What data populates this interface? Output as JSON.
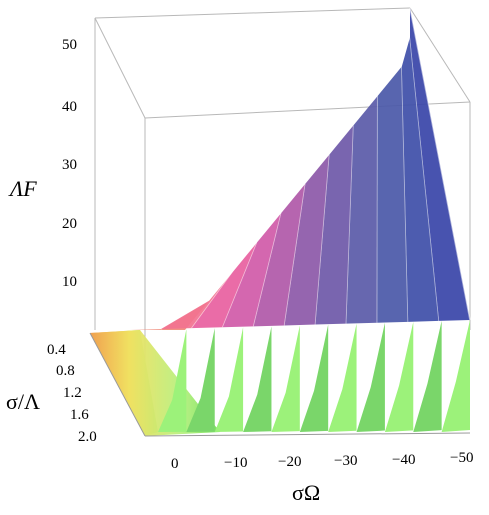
{
  "chart_data": {
    "type": "surface3d",
    "title": "",
    "zlabel": "ΛF",
    "ylabel": "σ/Λ",
    "xlabel": "σΩ",
    "x_ticks": [
      "0",
      "−10",
      "−20",
      "−30",
      "−40",
      "−50"
    ],
    "y_ticks": [
      "0.4",
      "0.8",
      "1.2",
      "1.6",
      "2.0"
    ],
    "z_ticks": [
      "10",
      "20",
      "30",
      "40",
      "50"
    ],
    "x_range": [
      0,
      -50
    ],
    "y_range": [
      0.4,
      2.0
    ],
    "z_range": [
      0,
      55
    ],
    "grid": false,
    "box": true,
    "colormap": "rainbow (yellow → green → blue/purple → pink → red)",
    "ridges_count": 11,
    "ridge_peak_values": [
      5,
      10,
      15,
      20,
      25,
      30,
      35,
      40,
      45,
      50,
      55
    ]
  }
}
